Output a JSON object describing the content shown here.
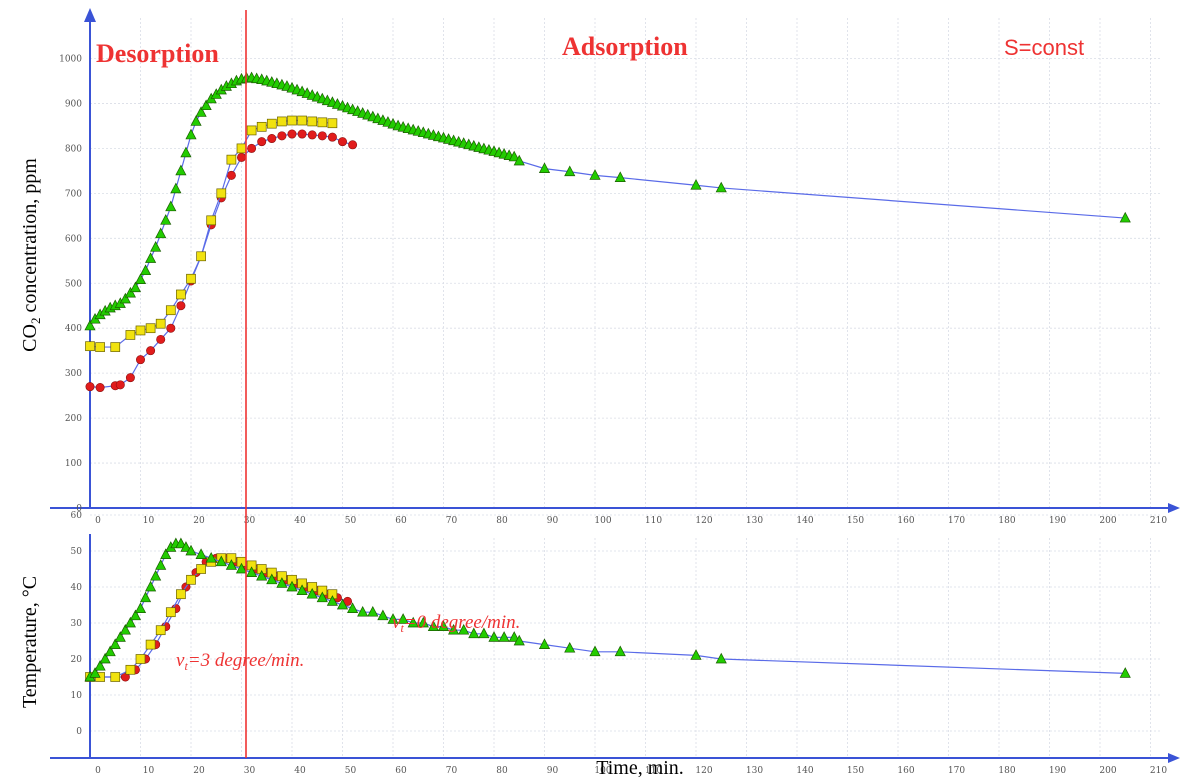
{
  "chart_data": [
    {
      "type": "scatter",
      "name": "co2",
      "title": "",
      "xlabel": "",
      "ylabel_main": "CO",
      "ylabel_sub": "2",
      "ylabel_rest": " concentration, ppm",
      "xlim": [
        0,
        210
      ],
      "ylim": [
        0,
        1000
      ],
      "x_ticks": [
        0,
        10,
        20,
        30,
        40,
        50,
        60,
        70,
        80,
        90,
        100,
        110,
        120,
        130,
        140,
        150,
        160,
        170,
        180,
        190,
        200,
        210
      ],
      "y_ticks": [
        0,
        100,
        200,
        300,
        400,
        500,
        600,
        700,
        800,
        900,
        1000
      ],
      "grid": true,
      "annotations": {
        "desorption": "Desorption",
        "adsorption": "Adsorption",
        "condition": "S=const"
      },
      "series": [
        {
          "marker": "circle",
          "color": "#e11c1c",
          "points": [
            [
              0,
              270
            ],
            [
              2,
              268
            ],
            [
              5,
              272
            ],
            [
              6,
              274
            ],
            [
              8,
              290
            ],
            [
              10,
              330
            ],
            [
              12,
              350
            ],
            [
              14,
              375
            ],
            [
              16,
              400
            ],
            [
              18,
              450
            ],
            [
              20,
              505
            ],
            [
              22,
              560
            ],
            [
              24,
              630
            ],
            [
              26,
              690
            ],
            [
              28,
              740
            ],
            [
              30,
              780
            ],
            [
              32,
              800
            ],
            [
              34,
              815
            ],
            [
              36,
              822
            ],
            [
              38,
              828
            ],
            [
              40,
              832
            ],
            [
              42,
              832
            ],
            [
              44,
              830
            ],
            [
              46,
              828
            ],
            [
              48,
              825
            ],
            [
              50,
              815
            ],
            [
              52,
              808
            ]
          ]
        },
        {
          "marker": "square",
          "color": "#f1e20f",
          "points": [
            [
              0,
              360
            ],
            [
              2,
              358
            ],
            [
              5,
              358
            ],
            [
              8,
              385
            ],
            [
              10,
              395
            ],
            [
              12,
              400
            ],
            [
              14,
              410
            ],
            [
              16,
              440
            ],
            [
              18,
              475
            ],
            [
              20,
              510
            ],
            [
              22,
              560
            ],
            [
              24,
              640
            ],
            [
              26,
              700
            ],
            [
              28,
              775
            ],
            [
              30,
              800
            ],
            [
              32,
              840
            ],
            [
              34,
              848
            ],
            [
              36,
              855
            ],
            [
              38,
              860
            ],
            [
              40,
              862
            ],
            [
              42,
              862
            ],
            [
              44,
              860
            ],
            [
              46,
              858
            ],
            [
              48,
              856
            ]
          ]
        },
        {
          "marker": "triangle",
          "color": "#22cc00",
          "points": [
            [
              0,
              405
            ],
            [
              1,
              420
            ],
            [
              2,
              430
            ],
            [
              3,
              438
            ],
            [
              4,
              445
            ],
            [
              5,
              450
            ],
            [
              6,
              455
            ],
            [
              7,
              465
            ],
            [
              8,
              478
            ],
            [
              9,
              490
            ],
            [
              10,
              508
            ],
            [
              11,
              528
            ],
            [
              12,
              555
            ],
            [
              13,
              580
            ],
            [
              14,
              610
            ],
            [
              15,
              640
            ],
            [
              16,
              670
            ],
            [
              17,
              710
            ],
            [
              18,
              750
            ],
            [
              19,
              790
            ],
            [
              20,
              830
            ],
            [
              21,
              860
            ],
            [
              22,
              880
            ],
            [
              23,
              895
            ],
            [
              24,
              910
            ],
            [
              25,
              920
            ],
            [
              26,
              930
            ],
            [
              27,
              938
            ],
            [
              28,
              944
            ],
            [
              29,
              950
            ],
            [
              30,
              954
            ],
            [
              31,
              956
            ],
            [
              32,
              957
            ],
            [
              33,
              955
            ],
            [
              34,
              953
            ],
            [
              35,
              950
            ],
            [
              36,
              947
            ],
            [
              37,
              944
            ],
            [
              38,
              941
            ],
            [
              39,
              938
            ],
            [
              40,
              934
            ],
            [
              41,
              930
            ],
            [
              42,
              926
            ],
            [
              43,
              922
            ],
            [
              44,
              918
            ],
            [
              45,
              914
            ],
            [
              46,
              910
            ],
            [
              47,
              906
            ],
            [
              48,
              902
            ],
            [
              49,
              898
            ],
            [
              50,
              894
            ],
            [
              51,
              890
            ],
            [
              52,
              886
            ],
            [
              53,
              882
            ],
            [
              54,
              878
            ],
            [
              55,
              874
            ],
            [
              56,
              870
            ],
            [
              57,
              866
            ],
            [
              58,
              862
            ],
            [
              59,
              858
            ],
            [
              60,
              854
            ],
            [
              61,
              850
            ],
            [
              62,
              847
            ],
            [
              63,
              844
            ],
            [
              64,
              841
            ],
            [
              65,
              838
            ],
            [
              66,
              835
            ],
            [
              67,
              832
            ],
            [
              68,
              829
            ],
            [
              69,
              826
            ],
            [
              70,
              823
            ],
            [
              71,
              820
            ],
            [
              72,
              817
            ],
            [
              73,
              814
            ],
            [
              74,
              811
            ],
            [
              75,
              808
            ],
            [
              76,
              805
            ],
            [
              77,
              802
            ],
            [
              78,
              799
            ],
            [
              79,
              796
            ],
            [
              80,
              793
            ],
            [
              81,
              790
            ],
            [
              82,
              787
            ],
            [
              83,
              784
            ],
            [
              84,
              781
            ],
            [
              85,
              772
            ],
            [
              90,
              755
            ],
            [
              95,
              748
            ],
            [
              100,
              740
            ],
            [
              105,
              735
            ],
            [
              120,
              718
            ],
            [
              125,
              712
            ],
            [
              205,
              645
            ]
          ]
        }
      ]
    },
    {
      "type": "scatter",
      "name": "temperature",
      "title": "",
      "xlabel": "Time, min.",
      "ylabel": "Temperature, °C",
      "xlim": [
        0,
        210
      ],
      "ylim": [
        0,
        60
      ],
      "x_ticks": [
        0,
        10,
        20,
        30,
        40,
        50,
        60,
        70,
        80,
        90,
        100,
        110,
        120,
        130,
        140,
        150,
        160,
        170,
        180,
        190,
        200,
        210
      ],
      "y_ticks": [
        0,
        10,
        20,
        30,
        40,
        50,
        60
      ],
      "grid": true,
      "annotations": {
        "rate_heating": {
          "v": "v",
          "sub": "t",
          "text": "=3 degree/min."
        },
        "rate_cooling": {
          "v": "v",
          "sub": "t",
          "text": "=0 degree/min."
        }
      },
      "series": [
        {
          "marker": "circle",
          "color": "#e11c1c",
          "points": [
            [
              0,
              15
            ],
            [
              2,
              15
            ],
            [
              5,
              15
            ],
            [
              7,
              15
            ],
            [
              9,
              17
            ],
            [
              11,
              20
            ],
            [
              13,
              24
            ],
            [
              15,
              29
            ],
            [
              17,
              34
            ],
            [
              19,
              40
            ],
            [
              21,
              44
            ],
            [
              23,
              47
            ],
            [
              25,
              48
            ],
            [
              27,
              48
            ],
            [
              29,
              47
            ],
            [
              31,
              46
            ],
            [
              33,
              45
            ],
            [
              35,
              44
            ],
            [
              37,
              43
            ],
            [
              39,
              42
            ],
            [
              41,
              41
            ],
            [
              43,
              40
            ],
            [
              45,
              39
            ],
            [
              47,
              38
            ],
            [
              49,
              37
            ],
            [
              51,
              36
            ]
          ]
        },
        {
          "marker": "square",
          "color": "#f1e20f",
          "points": [
            [
              0,
              15
            ],
            [
              2,
              15
            ],
            [
              5,
              15
            ],
            [
              8,
              17
            ],
            [
              10,
              20
            ],
            [
              12,
              24
            ],
            [
              14,
              28
            ],
            [
              16,
              33
            ],
            [
              18,
              38
            ],
            [
              20,
              42
            ],
            [
              22,
              45
            ],
            [
              24,
              47
            ],
            [
              26,
              48
            ],
            [
              28,
              48
            ],
            [
              30,
              47
            ],
            [
              32,
              46
            ],
            [
              34,
              45
            ],
            [
              36,
              44
            ],
            [
              38,
              43
            ],
            [
              40,
              42
            ],
            [
              42,
              41
            ],
            [
              44,
              40
            ],
            [
              46,
              39
            ],
            [
              48,
              38
            ]
          ]
        },
        {
          "marker": "triangle",
          "color": "#22cc00",
          "points": [
            [
              0,
              15
            ],
            [
              1,
              16
            ],
            [
              2,
              18
            ],
            [
              3,
              20
            ],
            [
              4,
              22
            ],
            [
              5,
              24
            ],
            [
              6,
              26
            ],
            [
              7,
              28
            ],
            [
              8,
              30
            ],
            [
              9,
              32
            ],
            [
              10,
              34
            ],
            [
              11,
              37
            ],
            [
              12,
              40
            ],
            [
              13,
              43
            ],
            [
              14,
              46
            ],
            [
              15,
              49
            ],
            [
              16,
              51
            ],
            [
              17,
              52
            ],
            [
              18,
              52
            ],
            [
              19,
              51
            ],
            [
              20,
              50
            ],
            [
              22,
              49
            ],
            [
              24,
              48
            ],
            [
              26,
              47
            ],
            [
              28,
              46
            ],
            [
              30,
              45
            ],
            [
              32,
              44
            ],
            [
              34,
              43
            ],
            [
              36,
              42
            ],
            [
              38,
              41
            ],
            [
              40,
              40
            ],
            [
              42,
              39
            ],
            [
              44,
              38
            ],
            [
              46,
              37
            ],
            [
              48,
              36
            ],
            [
              50,
              35
            ],
            [
              52,
              34
            ],
            [
              54,
              33
            ],
            [
              56,
              33
            ],
            [
              58,
              32
            ],
            [
              60,
              31
            ],
            [
              62,
              31
            ],
            [
              64,
              30
            ],
            [
              66,
              30
            ],
            [
              68,
              29
            ],
            [
              70,
              29
            ],
            [
              72,
              28
            ],
            [
              74,
              28
            ],
            [
              76,
              27
            ],
            [
              78,
              27
            ],
            [
              80,
              26
            ],
            [
              82,
              26
            ],
            [
              84,
              26
            ],
            [
              85,
              25
            ],
            [
              90,
              24
            ],
            [
              95,
              23
            ],
            [
              100,
              22
            ],
            [
              105,
              22
            ],
            [
              120,
              21
            ],
            [
              125,
              20
            ],
            [
              205,
              16
            ]
          ]
        }
      ]
    }
  ]
}
